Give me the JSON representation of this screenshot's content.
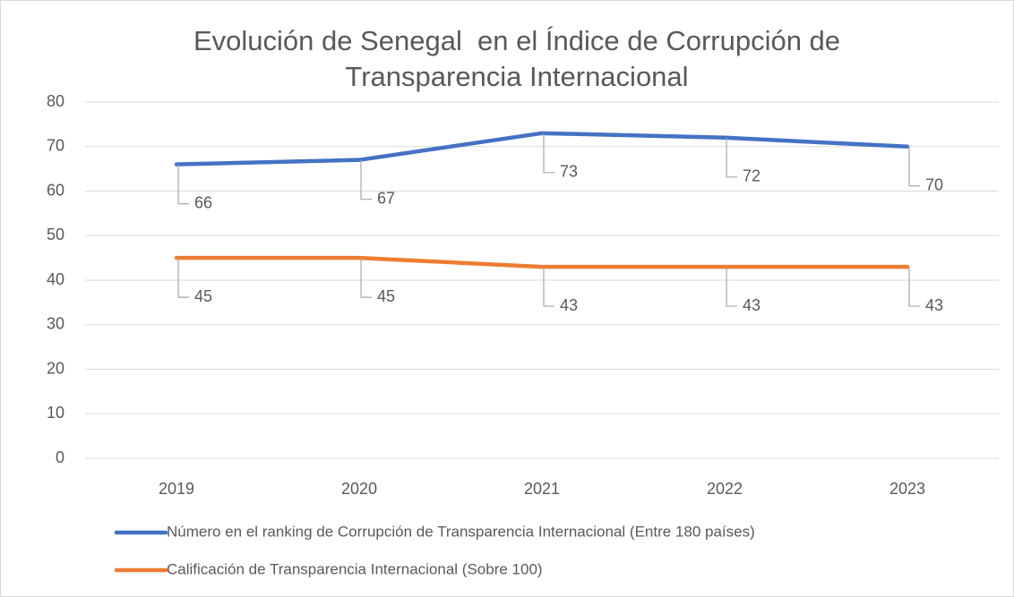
{
  "chart_data": {
    "type": "line",
    "title": "Evolución de Senegal  en el Índice de Corrupción de Transparencia Internacional",
    "categories": [
      "2019",
      "2020",
      "2021",
      "2022",
      "2023"
    ],
    "series": [
      {
        "name": "Número en el ranking de Corrupción de Transparencia Internacional (Entre 180 países)",
        "color": "#4472c4",
        "values": [
          66,
          67,
          73,
          72,
          70
        ]
      },
      {
        "name": "Calificación de Transparencia Internacional (Sobre 100)",
        "color": "#ed7d31",
        "values": [
          45,
          45,
          43,
          43,
          43
        ]
      }
    ],
    "ylim": [
      0,
      80
    ],
    "yticks": [
      0,
      10,
      20,
      30,
      40,
      50,
      60,
      70,
      80
    ],
    "grid": true,
    "legend": "bottom"
  }
}
